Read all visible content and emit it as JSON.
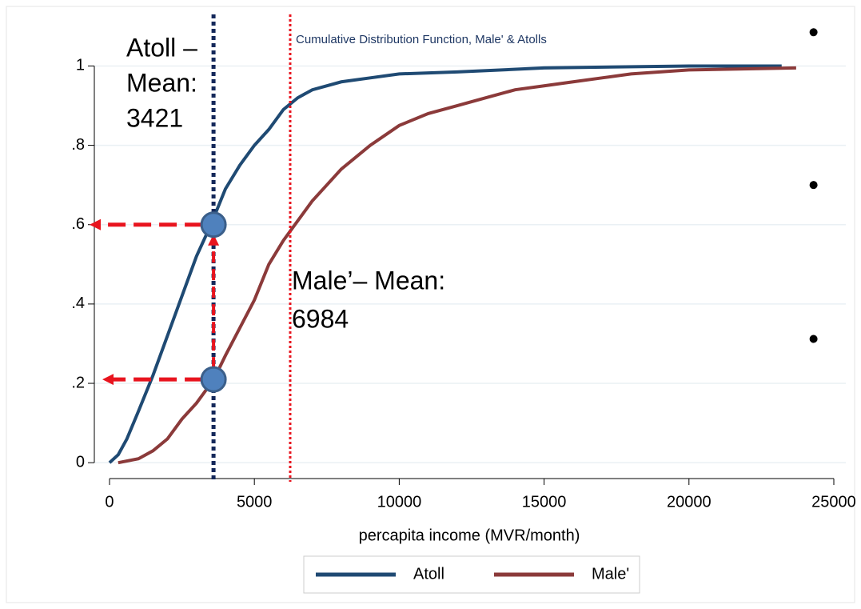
{
  "chart_data": {
    "type": "line",
    "title": "Cumulative Distribution Function, Male' & Atolls",
    "xlabel": "percapita income (MVR/month)",
    "xlim": [
      -524,
      25414
    ],
    "ylim": [
      -0.04,
      1.13
    ],
    "xticks": [
      0,
      5000,
      10000,
      15000,
      20000,
      25000
    ],
    "yticks": [
      0,
      {
        "value": 0.2,
        "label": ".2"
      },
      {
        "value": 0.4,
        "label": ".4"
      },
      {
        "value": 0.6,
        "label": ".6"
      },
      {
        "value": 0.8,
        "label": ".8"
      },
      1
    ],
    "grid": true,
    "legend": "bottom",
    "series": [
      {
        "name": "Atoll",
        "color": "#1f4a73",
        "x": [
          0,
          300,
          600,
          1000,
          1500,
          2000,
          2500,
          3000,
          3500,
          4000,
          4500,
          5000,
          5500,
          6000,
          6500,
          7000,
          8000,
          9000,
          10000,
          12000,
          15000,
          20000,
          23200
        ],
        "values": [
          0,
          0.02,
          0.06,
          0.13,
          0.22,
          0.32,
          0.42,
          0.52,
          0.6,
          0.69,
          0.75,
          0.8,
          0.84,
          0.89,
          0.92,
          0.94,
          0.96,
          0.97,
          0.98,
          0.985,
          0.995,
          1.0,
          1.0
        ]
      },
      {
        "name": "Male'",
        "color": "#8b3a3a",
        "x": [
          300,
          1000,
          1500,
          2000,
          2500,
          3000,
          3600,
          4000,
          4500,
          5000,
          5500,
          6000,
          6300,
          7000,
          7500,
          8000,
          9000,
          10000,
          11000,
          12000,
          13000,
          14000,
          15000,
          16000,
          17000,
          18000,
          20000,
          23700
        ],
        "values": [
          0,
          0.01,
          0.03,
          0.06,
          0.11,
          0.15,
          0.21,
          0.27,
          0.34,
          0.41,
          0.5,
          0.56,
          0.59,
          0.66,
          0.7,
          0.74,
          0.8,
          0.85,
          0.88,
          0.9,
          0.92,
          0.94,
          0.95,
          0.96,
          0.97,
          0.98,
          0.99,
          0.995
        ]
      }
    ],
    "reference_lines": [
      {
        "x": 3590,
        "color": "#14285a"
      },
      {
        "x": 6236,
        "color": "#e8141e"
      }
    ],
    "annotations": [
      {
        "lines": [
          "Atoll –",
          "Mean:",
          "3421"
        ]
      },
      {
        "lines": [
          "Male’– Mean:",
          "6984"
        ]
      }
    ],
    "highlight_points": {
      "color": "#4f81bd",
      "x": [
        3590,
        3590
      ],
      "values": [
        0.6,
        0.21
      ]
    },
    "markers": {
      "color": "#000000",
      "x": [
        24300,
        24300,
        24300
      ],
      "values": [
        1.085,
        0.7,
        0.312
      ]
    }
  }
}
